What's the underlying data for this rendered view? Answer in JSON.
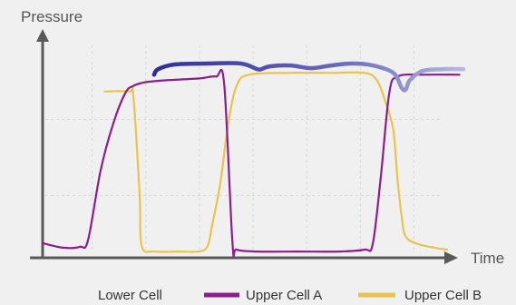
{
  "chart_data": {
    "type": "line",
    "title": "",
    "xlabel": "Time",
    "ylabel": "Pressure",
    "xlim": [
      0,
      100
    ],
    "ylim": [
      0,
      100
    ],
    "grid": true,
    "legend_position": "bottom",
    "series": [
      {
        "name": "Lower Cell",
        "color": "#6a6ab8",
        "points": [
          [
            27,
            94
          ],
          [
            28,
            97
          ],
          [
            32,
            99.5
          ],
          [
            40,
            100
          ],
          [
            48,
            100
          ],
          [
            52,
            97
          ],
          [
            53,
            97
          ],
          [
            55,
            98.5
          ],
          [
            60,
            99
          ],
          [
            65,
            97.5
          ],
          [
            70,
            99
          ],
          [
            75,
            100
          ],
          [
            80,
            99
          ],
          [
            85,
            95
          ],
          [
            87,
            87
          ],
          [
            88,
            86
          ],
          [
            89,
            91
          ],
          [
            92,
            96
          ],
          [
            97,
            97
          ],
          [
            102,
            97
          ]
        ]
      },
      {
        "name": "Upper Cell A",
        "color": "#8b1e8b",
        "points": [
          [
            0,
            3.5
          ],
          [
            5,
            1
          ],
          [
            9,
            1.5
          ],
          [
            11,
            5
          ],
          [
            14,
            42
          ],
          [
            17,
            67
          ],
          [
            20,
            84
          ],
          [
            22,
            88
          ],
          [
            25,
            90
          ],
          [
            30,
            91
          ],
          [
            38,
            92
          ],
          [
            42,
            93
          ],
          [
            44,
            89
          ],
          [
            46,
            4
          ],
          [
            47,
            0
          ],
          [
            52,
            -1
          ],
          [
            62,
            -1
          ],
          [
            72,
            -1
          ],
          [
            78,
            0
          ],
          [
            80,
            3
          ],
          [
            82,
            40
          ],
          [
            84,
            84
          ],
          [
            86,
            93
          ],
          [
            92,
            94
          ],
          [
            101,
            94
          ]
        ]
      },
      {
        "name": "Upper Cell B",
        "color": "#e8c44c",
        "points": [
          [
            15,
            85
          ],
          [
            21,
            85
          ],
          [
            22,
            82
          ],
          [
            23.5,
            30
          ],
          [
            24,
            2
          ],
          [
            27,
            -1
          ],
          [
            33,
            -1
          ],
          [
            38,
            -1
          ],
          [
            40,
            2
          ],
          [
            41,
            12
          ],
          [
            43,
            35
          ],
          [
            45,
            68
          ],
          [
            47,
            88
          ],
          [
            50,
            94
          ],
          [
            60,
            95
          ],
          [
            70,
            95
          ],
          [
            78,
            95
          ],
          [
            81,
            91
          ],
          [
            83,
            80
          ],
          [
            85,
            64
          ],
          [
            86,
            38
          ],
          [
            87,
            18
          ],
          [
            88,
            7
          ],
          [
            91,
            3
          ],
          [
            95,
            1
          ],
          [
            98,
            0
          ]
        ]
      }
    ]
  }
}
